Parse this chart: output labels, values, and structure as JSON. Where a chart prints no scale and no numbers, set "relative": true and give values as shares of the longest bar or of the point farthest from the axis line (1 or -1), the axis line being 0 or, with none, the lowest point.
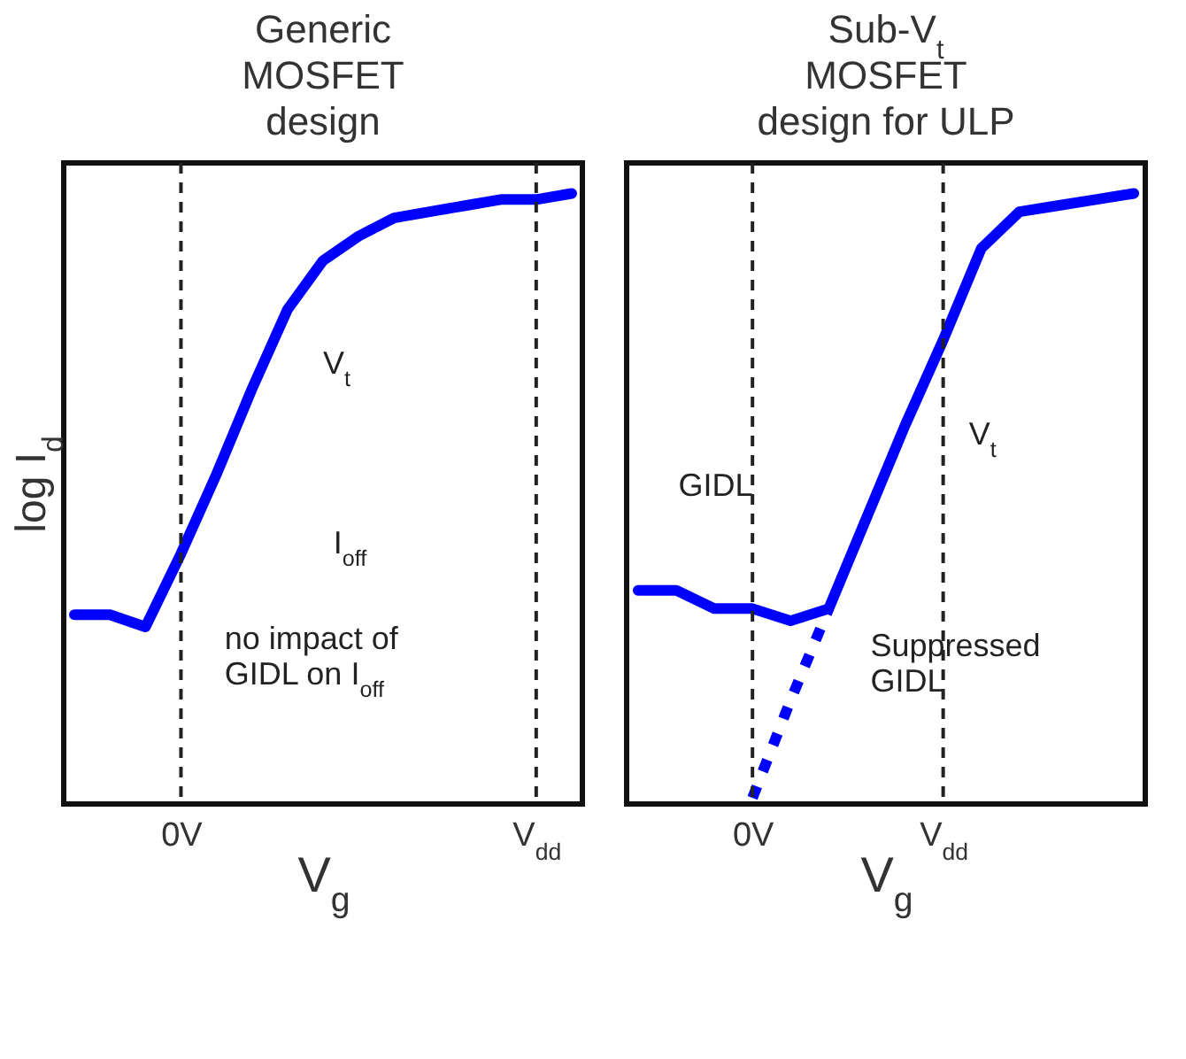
{
  "chart_data": [
    {
      "type": "line",
      "title": "Generic\nMOSFET\ndesign",
      "xlabel": "V$_{g}$",
      "ylabel": "log I$_{d}$",
      "relative": true,
      "tick_labels": "x",
      "categories": [
        null,
        null,
        null,
        "0V",
        null,
        null,
        null,
        null,
        null,
        null,
        null,
        null,
        null,
        "V$_{dd}$",
        null
      ],
      "ref_lines": [
        {
          "axis": "x",
          "value": "0V",
          "line_style": "dashed"
        },
        {
          "axis": "x",
          "value": "V$_{dd}$",
          "line_style": "dashed"
        }
      ],
      "series": [
        {
          "color": "#0000ff",
          "line_style": "solid",
          "values": [
            0.31,
            0.31,
            0.29,
            0.41,
            0.54,
            0.68,
            0.81,
            0.89,
            0.93,
            0.96,
            0.97,
            0.98,
            0.99,
            0.99,
            1.0
          ]
        }
      ],
      "annotations": [
        "V$_{t}$",
        "I$_{off}$",
        "no impact of\nGIDL on I$_{off}$"
      ]
    },
    {
      "type": "line",
      "title": "Sub-V$_{t}$\nMOSFET\ndesign for ULP",
      "xlabel": "V$_{g}$",
      "relative": true,
      "tick_labels": "x",
      "categories": [
        null,
        null,
        null,
        "0V",
        null,
        null,
        null,
        null,
        "V$_{dd}$",
        null,
        null,
        null,
        null,
        null
      ],
      "ref_lines": [
        {
          "axis": "x",
          "value": "0V",
          "line_style": "dashed"
        },
        {
          "axis": "x",
          "value": "V$_{dd}$",
          "line_style": "dashed"
        }
      ],
      "series": [
        {
          "color": "#0000ff",
          "line_style": "solid",
          "values": [
            0.35,
            0.35,
            0.32,
            0.32,
            0.3,
            0.32,
            0.47,
            0.62,
            0.76,
            0.91,
            0.97,
            0.98,
            0.99,
            1.0
          ]
        },
        {
          "color": "#0000ff",
          "line_style": "dotted",
          "values": [
            null,
            null,
            null,
            0.01,
            0.17,
            0.32,
            null,
            null,
            null,
            null,
            null,
            null,
            null,
            null
          ]
        }
      ],
      "annotations": [
        "GIDL",
        "Suppressed\nGIDL",
        "V$_{t}$"
      ]
    }
  ]
}
